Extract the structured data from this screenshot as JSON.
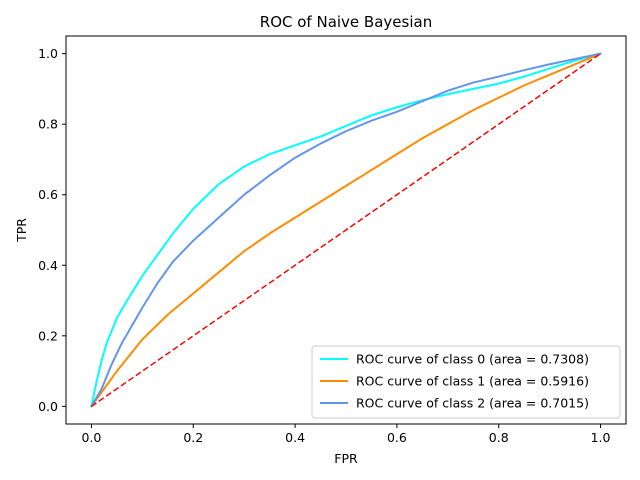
{
  "chart_data": {
    "type": "line",
    "title": "ROC of Naive Bayesian",
    "xlabel": "FPR",
    "ylabel": "TPR",
    "xlim": [
      -0.05,
      1.05
    ],
    "ylim": [
      -0.05,
      1.05
    ],
    "xticks": [
      0.0,
      0.2,
      0.4,
      0.6,
      0.8,
      1.0
    ],
    "yticks": [
      0.0,
      0.2,
      0.4,
      0.6,
      0.8,
      1.0
    ],
    "xtick_labels": [
      "0.0",
      "0.2",
      "0.4",
      "0.6",
      "0.8",
      "1.0"
    ],
    "ytick_labels": [
      "0.0",
      "0.2",
      "0.4",
      "0.6",
      "0.8",
      "1.0"
    ],
    "grid": false,
    "legend_position": "lower-right",
    "series": [
      {
        "name": "ROC curve of class 0 (area = 0.7308)",
        "color": "#00ffff",
        "x": [
          0.0,
          0.01,
          0.02,
          0.03,
          0.05,
          0.07,
          0.1,
          0.13,
          0.16,
          0.2,
          0.25,
          0.3,
          0.35,
          0.4,
          0.45,
          0.5,
          0.55,
          0.6,
          0.65,
          0.7,
          0.75,
          0.8,
          0.85,
          0.9,
          0.95,
          1.0
        ],
        "y": [
          0.0,
          0.07,
          0.13,
          0.18,
          0.25,
          0.3,
          0.37,
          0.43,
          0.49,
          0.56,
          0.63,
          0.68,
          0.715,
          0.74,
          0.765,
          0.795,
          0.825,
          0.848,
          0.868,
          0.885,
          0.9,
          0.915,
          0.935,
          0.958,
          0.98,
          1.0
        ]
      },
      {
        "name": "ROC curve of class 1 (area = 0.5916)",
        "color": "#ff8c00",
        "x": [
          0.0,
          0.02,
          0.05,
          0.1,
          0.15,
          0.2,
          0.25,
          0.3,
          0.35,
          0.4,
          0.45,
          0.5,
          0.55,
          0.6,
          0.65,
          0.7,
          0.75,
          0.8,
          0.85,
          0.9,
          0.95,
          1.0
        ],
        "y": [
          0.0,
          0.04,
          0.1,
          0.19,
          0.26,
          0.32,
          0.38,
          0.44,
          0.49,
          0.535,
          0.58,
          0.625,
          0.67,
          0.715,
          0.76,
          0.8,
          0.84,
          0.875,
          0.91,
          0.94,
          0.97,
          1.0
        ]
      },
      {
        "name": "ROC curve of class 2 (area = 0.7015)",
        "color": "#6495ed",
        "x": [
          0.0,
          0.02,
          0.04,
          0.06,
          0.08,
          0.1,
          0.13,
          0.16,
          0.2,
          0.25,
          0.3,
          0.35,
          0.4,
          0.45,
          0.5,
          0.55,
          0.6,
          0.65,
          0.7,
          0.75,
          0.8,
          0.85,
          0.9,
          0.95,
          1.0
        ],
        "y": [
          0.0,
          0.05,
          0.12,
          0.18,
          0.23,
          0.28,
          0.35,
          0.41,
          0.47,
          0.535,
          0.6,
          0.655,
          0.705,
          0.745,
          0.78,
          0.81,
          0.835,
          0.865,
          0.895,
          0.918,
          0.935,
          0.953,
          0.97,
          0.985,
          1.0
        ]
      },
      {
        "name": "",
        "color": "#ff0000",
        "style": "dashed",
        "x": [
          0.0,
          1.0
        ],
        "y": [
          0.0,
          1.0
        ]
      }
    ]
  }
}
